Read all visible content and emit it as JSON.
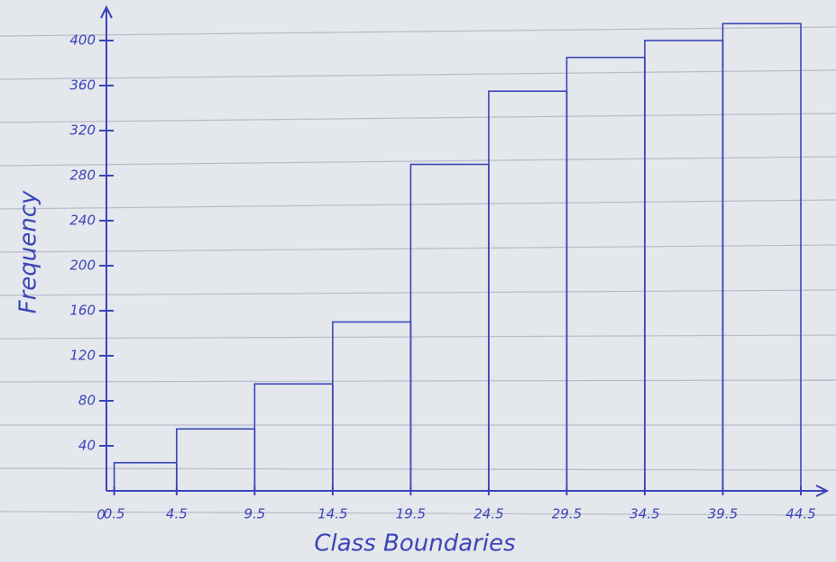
{
  "chart_data": {
    "type": "histogram",
    "x_label": "Class Boundaries",
    "y_label": "Frequency",
    "origin_label": "0",
    "bins": [
      0.5,
      4.5,
      9.5,
      14.5,
      19.5,
      24.5,
      29.5,
      34.5,
      39.5,
      44.5
    ],
    "values": [
      25,
      55,
      95,
      150,
      290,
      355,
      385,
      400,
      415
    ],
    "color": "#3b45b8",
    "xlim": [
      0,
      44.5
    ],
    "xticks": [
      0.5,
      4.5,
      9.5,
      14.5,
      19.5,
      24.5,
      29.5,
      34.5,
      39.5,
      44.5
    ],
    "ylim": [
      0,
      420
    ],
    "yticks": [
      40,
      80,
      120,
      160,
      200,
      240,
      280,
      320,
      360,
      400
    ],
    "grid": false
  }
}
